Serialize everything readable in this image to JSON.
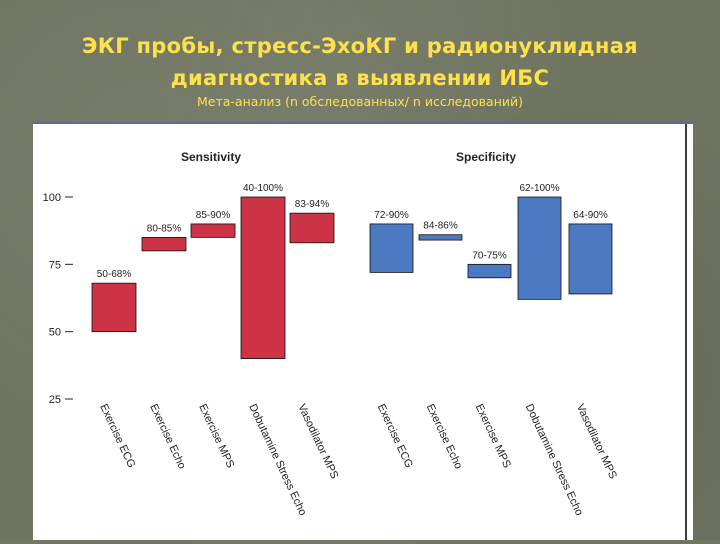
{
  "slide": {
    "title_line1": "ЭКГ пробы, стресс-ЭхоКГ и радионуклидная",
    "title_line2": "диагностика в выявлении ИБС",
    "subtitle": "Мета-анализ (n обследованных/ n исследований)"
  },
  "colors": {
    "sensitivity_fill": "#cc3344",
    "specificity_fill": "#4b7ac2",
    "title_color": "#ffe14a",
    "background": "#6f7561"
  },
  "chart_data": {
    "type": "bar",
    "subtype": "floating-range",
    "ylim": [
      25,
      100
    ],
    "yticks": [
      100,
      75,
      50,
      25
    ],
    "categories": [
      "Exercise ECG",
      "Exercise Echo",
      "Exercise MPS",
      "Dobutamine Stress Echo",
      "Vasodilator MPS"
    ],
    "panels": [
      {
        "name": "Sensitivity",
        "color": "#cc3344",
        "ranges": [
          [
            50,
            68
          ],
          [
            80,
            85
          ],
          [
            85,
            90
          ],
          [
            40,
            100
          ],
          [
            83,
            94
          ]
        ],
        "labels": [
          "50-68%",
          "80-85%",
          "85-90%",
          "40-100%",
          "83-94%"
        ]
      },
      {
        "name": "Specificity",
        "color": "#4b7ac2",
        "ranges": [
          [
            72,
            90
          ],
          [
            84,
            86
          ],
          [
            70,
            75
          ],
          [
            62,
            100
          ],
          [
            64,
            90
          ]
        ],
        "labels": [
          "72-90%",
          "84-86%",
          "70-75%",
          "62-100%",
          "64-90%"
        ]
      }
    ]
  }
}
